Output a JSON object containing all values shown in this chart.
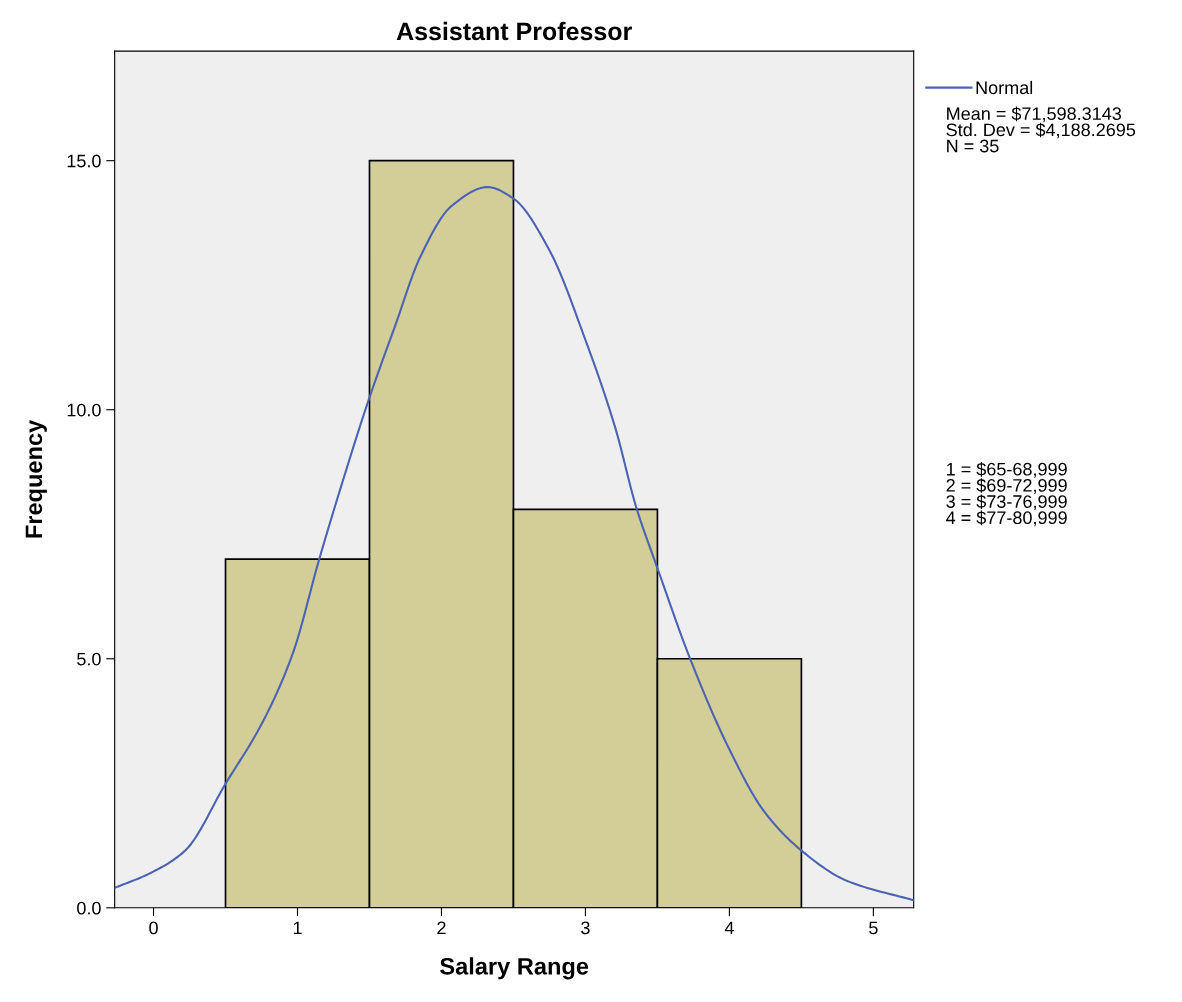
{
  "chart_data": {
    "type": "histogram",
    "title": "Assistant Professor",
    "xlabel": "Salary Range",
    "ylabel": "Frequency",
    "series": [
      {
        "type": "histogram",
        "bins": [
          0.5,
          1.5,
          2.5,
          3.5,
          4.5
        ],
        "values": [
          7,
          15,
          8,
          5
        ],
        "color": "#d3cd98"
      },
      {
        "type": "line",
        "name": "Normal",
        "color": "#4a63b5",
        "x": [
          -0.27,
          -0.02,
          0.22,
          0.5,
          0.76,
          0.97,
          1.15,
          1.32,
          1.49,
          1.68,
          1.85,
          2.07,
          2.32,
          2.5,
          2.75,
          3.0,
          3.21,
          3.35,
          3.5,
          3.73,
          3.99,
          4.24,
          4.5,
          4.81,
          5.28
        ],
        "values": [
          0.4,
          0.7,
          1.15,
          2.49,
          3.74,
          5.13,
          6.99,
          8.62,
          10.16,
          11.7,
          13.05,
          14.09,
          14.47,
          14.24,
          13.2,
          11.4,
          9.61,
          8.07,
          6.82,
          4.98,
          3.24,
          1.94,
          1.15,
          0.55,
          0.15
        ]
      }
    ],
    "xlim": [
      -0.27,
      5.28
    ],
    "ylim": [
      0,
      17.2
    ],
    "xticks": [
      0,
      1,
      2,
      3,
      4,
      5
    ],
    "yticks": [
      {
        "value": 0,
        "label": "0.0"
      },
      {
        "value": 5,
        "label": "5.0"
      },
      {
        "value": 10,
        "label": "10.0"
      },
      {
        "value": 15,
        "label": "15.0"
      }
    ],
    "legend": "top right",
    "grid": false,
    "annotations": [
      "Mean = $71,598.3143\nStd. Dev = $4,188.2695\nN = 35",
      "1 = $65-68,999\n2 = $69-72,999\n3 = $73-76,999\n4 = $77-80,999"
    ]
  }
}
